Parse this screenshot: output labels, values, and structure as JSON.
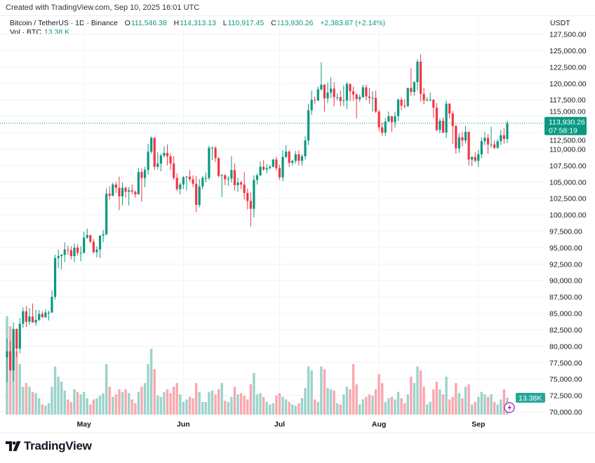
{
  "credit": "Created with TradingView.com, Sep 10, 2025 16:01 UTC",
  "legend": {
    "symbol": "Bitcoin / TetherUS · 1D · Binance",
    "open_label": "O",
    "open": "111,546.38",
    "high_label": "H",
    "high": "114,313.13",
    "low_label": "L",
    "low": "110,917.45",
    "close_label": "C",
    "close": "113,930.26",
    "change": "+2,383.87 (+2.14%)",
    "vol_label": "Vol · BTC",
    "vol": "13.38 K"
  },
  "currency": "USDT",
  "price_label": {
    "price": "113,930.26",
    "countdown": "07:58:19"
  },
  "volume_label": "13.38K",
  "logo_text": "TradingView",
  "colors": {
    "up": "#089981",
    "down": "#F23645",
    "up_volume": "#9BD3CA",
    "down_volume": "#F9A8AE",
    "alert_icon": "#9C27B0"
  },
  "chart_data": {
    "type": "candlestick",
    "title": "",
    "y_unit": "USDT",
    "ylim": [
      70000,
      127500
    ],
    "y_ticks": [
      "127,500.00",
      "125,000.00",
      "122,500.00",
      "120,000.00",
      "117,500.00",
      "115,000.00",
      "112,500.00",
      "110,000.00",
      "107,500.00",
      "105,000.00",
      "102,500.00",
      "100,000.00",
      "97,500.00",
      "95,000.00",
      "92,500.00",
      "90,000.00",
      "87,500.00",
      "85,000.00",
      "82,500.00",
      "80,000.00",
      "77,500.00",
      "75,000.00",
      "72,500.00",
      "70,000.00"
    ],
    "x_ticks": [
      {
        "label": "May",
        "date": "05-01"
      },
      {
        "label": "Jun",
        "date": "06-01"
      },
      {
        "label": "Jul",
        "date": "07-01"
      },
      {
        "label": "Aug",
        "date": "08-01"
      },
      {
        "label": "Sep",
        "date": "09-01"
      }
    ],
    "grid": true,
    "last_price": 113930.26,
    "columns": [
      "date",
      "open",
      "high",
      "low",
      "close",
      "volume_k_btc"
    ],
    "candles": [
      [
        "04-07",
        78300,
        81200,
        74500,
        79200,
        78
      ],
      [
        "04-08",
        79200,
        80800,
        76200,
        76300,
        70
      ],
      [
        "04-09",
        76300,
        83600,
        74600,
        82600,
        68
      ],
      [
        "04-10",
        82600,
        82700,
        78400,
        79600,
        50
      ],
      [
        "04-11",
        79600,
        84300,
        78900,
        83400,
        40
      ],
      [
        "04-12",
        83400,
        85900,
        82800,
        85300,
        22
      ],
      [
        "04-13",
        85300,
        86100,
        82900,
        83700,
        25
      ],
      [
        "04-14",
        83700,
        85800,
        83200,
        84500,
        22
      ],
      [
        "04-15",
        84500,
        86500,
        83600,
        83600,
        18
      ],
      [
        "04-16",
        83600,
        85500,
        83100,
        84000,
        17
      ],
      [
        "04-17",
        84000,
        85500,
        83800,
        84900,
        13
      ],
      [
        "04-18",
        84900,
        85300,
        84300,
        84400,
        8
      ],
      [
        "04-19",
        84400,
        85600,
        84300,
        85100,
        7
      ],
      [
        "04-20",
        85100,
        85400,
        83900,
        85100,
        9
      ],
      [
        "04-21",
        85100,
        88500,
        85100,
        87500,
        22
      ],
      [
        "04-22",
        87500,
        93900,
        87100,
        93400,
        38
      ],
      [
        "04-23",
        93400,
        94700,
        91900,
        93700,
        30
      ],
      [
        "04-24",
        93700,
        94000,
        91700,
        93900,
        26
      ],
      [
        "04-25",
        93900,
        95800,
        92800,
        94700,
        19
      ],
      [
        "04-26",
        94700,
        95300,
        93900,
        94600,
        12
      ],
      [
        "04-27",
        94600,
        95200,
        93200,
        93700,
        10
      ],
      [
        "04-28",
        93700,
        95600,
        92800,
        95000,
        20
      ],
      [
        "04-29",
        95000,
        95500,
        93800,
        94200,
        18
      ],
      [
        "04-30",
        94200,
        95200,
        92900,
        94200,
        16
      ],
      [
        "05-01",
        94200,
        97400,
        94100,
        96500,
        18
      ],
      [
        "05-02",
        96500,
        97900,
        96300,
        96900,
        13
      ],
      [
        "05-03",
        96900,
        96900,
        95700,
        95900,
        8
      ],
      [
        "05-04",
        95900,
        96300,
        94100,
        94300,
        12
      ],
      [
        "05-05",
        94300,
        95200,
        93500,
        94700,
        13
      ],
      [
        "05-06",
        94700,
        96900,
        93400,
        96800,
        15
      ],
      [
        "05-07",
        96800,
        97700,
        95800,
        97000,
        17
      ],
      [
        "05-08",
        97000,
        104000,
        96900,
        103200,
        40
      ],
      [
        "05-09",
        103200,
        104300,
        102300,
        102900,
        22
      ],
      [
        "05-10",
        102900,
        104900,
        102800,
        104600,
        14
      ],
      [
        "05-11",
        104600,
        105000,
        103300,
        104100,
        16
      ],
      [
        "05-12",
        104100,
        105800,
        100700,
        102800,
        20
      ],
      [
        "05-13",
        102800,
        104900,
        101400,
        104100,
        18
      ],
      [
        "05-14",
        104100,
        104300,
        102600,
        103500,
        20
      ],
      [
        "05-15",
        103500,
        104200,
        101400,
        103700,
        17
      ],
      [
        "05-16",
        103700,
        104600,
        103100,
        103500,
        12
      ],
      [
        "05-17",
        103500,
        103700,
        102600,
        103100,
        9
      ],
      [
        "05-18",
        103100,
        107100,
        103100,
        106500,
        18
      ],
      [
        "05-19",
        106500,
        107100,
        102000,
        105600,
        22
      ],
      [
        "05-20",
        105600,
        107300,
        104200,
        106800,
        25
      ],
      [
        "05-21",
        106800,
        110800,
        106100,
        109600,
        40
      ],
      [
        "05-22",
        109600,
        111900,
        109300,
        111700,
        52
      ],
      [
        "05-23",
        111700,
        111800,
        106800,
        107300,
        36
      ],
      [
        "05-24",
        107300,
        109500,
        106900,
        107800,
        15
      ],
      [
        "05-25",
        107800,
        109300,
        106600,
        109000,
        14
      ],
      [
        "05-26",
        109000,
        110400,
        108700,
        109400,
        18
      ],
      [
        "05-27",
        109400,
        110700,
        107500,
        108900,
        20
      ],
      [
        "05-28",
        108900,
        109300,
        106800,
        107800,
        17
      ],
      [
        "05-29",
        107800,
        108900,
        105300,
        105600,
        22
      ],
      [
        "05-30",
        105600,
        106300,
        103600,
        103900,
        25
      ],
      [
        "05-31",
        103900,
        104900,
        103100,
        104600,
        16
      ],
      [
        "06-01",
        104600,
        105900,
        103900,
        105700,
        10
      ],
      [
        "06-02",
        105700,
        105900,
        103700,
        105800,
        12
      ],
      [
        "06-03",
        105800,
        106800,
        105000,
        105400,
        14
      ],
      [
        "06-04",
        105400,
        106000,
        104200,
        104700,
        13
      ],
      [
        "06-05",
        104700,
        105900,
        100400,
        101500,
        25
      ],
      [
        "06-06",
        101500,
        105400,
        101100,
        104300,
        18
      ],
      [
        "06-07",
        104300,
        105900,
        103900,
        105600,
        10
      ],
      [
        "06-08",
        105600,
        106400,
        104900,
        105600,
        10
      ],
      [
        "06-09",
        105600,
        110500,
        105300,
        110200,
        18
      ],
      [
        "06-10",
        110200,
        110400,
        108300,
        110200,
        19
      ],
      [
        "06-11",
        110200,
        110400,
        108000,
        108600,
        16
      ],
      [
        "06-12",
        108600,
        108800,
        105700,
        105900,
        20
      ],
      [
        "06-13",
        105900,
        106200,
        102700,
        106000,
        25
      ],
      [
        "06-14",
        106000,
        106200,
        104500,
        105400,
        11
      ],
      [
        "06-15",
        105400,
        105900,
        104400,
        105500,
        10
      ],
      [
        "06-16",
        105500,
        108900,
        104900,
        106800,
        14
      ],
      [
        "06-17",
        106800,
        107800,
        103700,
        104500,
        22
      ],
      [
        "06-18",
        104500,
        105600,
        103500,
        104900,
        16
      ],
      [
        "06-19",
        104900,
        105200,
        103900,
        104600,
        17
      ],
      [
        "06-20",
        104600,
        106500,
        102300,
        103300,
        15
      ],
      [
        "06-21",
        103300,
        104000,
        100800,
        102100,
        12
      ],
      [
        "06-22",
        102100,
        103400,
        98200,
        100900,
        24
      ],
      [
        "06-23",
        100900,
        106000,
        99600,
        105300,
        33
      ],
      [
        "06-24",
        105300,
        106300,
        104600,
        106000,
        16
      ],
      [
        "06-25",
        106000,
        108100,
        105900,
        107300,
        17
      ],
      [
        "06-26",
        107300,
        108300,
        106700,
        106900,
        14
      ],
      [
        "06-27",
        106900,
        107700,
        106300,
        107100,
        10
      ],
      [
        "06-28",
        107100,
        107600,
        106900,
        107300,
        8
      ],
      [
        "06-29",
        107300,
        108500,
        107200,
        108400,
        9
      ],
      [
        "06-30",
        108400,
        108800,
        106700,
        107100,
        15
      ],
      [
        "07-01",
        107100,
        107600,
        105300,
        105700,
        17
      ],
      [
        "07-02",
        105700,
        109800,
        105100,
        108800,
        14
      ],
      [
        "07-03",
        108800,
        110600,
        108600,
        109600,
        12
      ],
      [
        "07-04",
        109600,
        109800,
        107300,
        107900,
        10
      ],
      [
        "07-05",
        107900,
        108400,
        107500,
        108200,
        8
      ],
      [
        "07-06",
        108200,
        109700,
        107800,
        109200,
        7
      ],
      [
        "07-07",
        109200,
        109800,
        107500,
        108200,
        9
      ],
      [
        "07-08",
        108200,
        109200,
        107500,
        108900,
        13
      ],
      [
        "07-09",
        108900,
        111900,
        108400,
        111300,
        21
      ],
      [
        "07-10",
        111300,
        116900,
        110600,
        115900,
        38
      ],
      [
        "07-11",
        115900,
        118900,
        115200,
        117500,
        35
      ],
      [
        "07-12",
        117500,
        118000,
        116900,
        117400,
        12
      ],
      [
        "07-13",
        117400,
        119500,
        117300,
        119100,
        10
      ],
      [
        "07-14",
        119100,
        123200,
        118900,
        119800,
        38
      ],
      [
        "07-15",
        119800,
        119900,
        115700,
        117700,
        36
      ],
      [
        "07-16",
        117700,
        120100,
        117000,
        118600,
        21
      ],
      [
        "07-17",
        118600,
        120900,
        117800,
        119200,
        20
      ],
      [
        "07-18",
        119200,
        120200,
        116500,
        117900,
        19
      ],
      [
        "07-19",
        117900,
        118500,
        117400,
        117900,
        9
      ],
      [
        "07-20",
        117900,
        118900,
        116500,
        117300,
        8
      ],
      [
        "07-21",
        117300,
        119700,
        116500,
        117400,
        16
      ],
      [
        "07-22",
        117400,
        120200,
        116100,
        119900,
        22
      ],
      [
        "07-23",
        119900,
        120000,
        117300,
        118800,
        20
      ],
      [
        "07-24",
        118800,
        119500,
        117300,
        118300,
        40
      ],
      [
        "07-25",
        118300,
        118500,
        114700,
        117600,
        24
      ],
      [
        "07-26",
        117600,
        118300,
        117200,
        117900,
        8
      ],
      [
        "07-27",
        117900,
        119800,
        117800,
        119400,
        12
      ],
      [
        "07-28",
        119400,
        119800,
        117400,
        118000,
        14
      ],
      [
        "07-29",
        118000,
        119300,
        116900,
        117800,
        16
      ],
      [
        "07-30",
        117800,
        118800,
        115700,
        117800,
        15
      ],
      [
        "07-31",
        117800,
        118900,
        115500,
        115700,
        20
      ],
      [
        "08-01",
        115700,
        116000,
        112700,
        113300,
        32
      ],
      [
        "08-02",
        113300,
        114000,
        112000,
        112500,
        25
      ],
      [
        "08-03",
        112500,
        114700,
        112000,
        114200,
        10
      ],
      [
        "08-04",
        114200,
        115700,
        114100,
        115000,
        13
      ],
      [
        "08-05",
        115000,
        115100,
        112600,
        114100,
        14
      ],
      [
        "08-06",
        114100,
        115700,
        113300,
        115000,
        12
      ],
      [
        "08-07",
        115000,
        117700,
        114300,
        117500,
        18
      ],
      [
        "08-08",
        117500,
        117900,
        115900,
        116600,
        13
      ],
      [
        "08-09",
        116600,
        117600,
        116200,
        116500,
        9
      ],
      [
        "08-10",
        116500,
        119300,
        116500,
        119300,
        16
      ],
      [
        "08-11",
        119300,
        122300,
        118100,
        118700,
        30
      ],
      [
        "08-12",
        118700,
        120300,
        118100,
        120200,
        25
      ],
      [
        "08-13",
        120200,
        123700,
        118900,
        123300,
        38
      ],
      [
        "08-14",
        123300,
        124400,
        117200,
        118400,
        35
      ],
      [
        "08-15",
        118400,
        119300,
        116800,
        117400,
        22
      ],
      [
        "08-16",
        117400,
        117900,
        117300,
        117500,
        8
      ],
      [
        "08-17",
        117500,
        118600,
        117300,
        117500,
        10
      ],
      [
        "08-18",
        117500,
        117600,
        114700,
        116300,
        20
      ],
      [
        "08-19",
        116300,
        117000,
        112700,
        112900,
        26
      ],
      [
        "08-20",
        112900,
        114600,
        112400,
        114300,
        20
      ],
      [
        "08-21",
        114300,
        114800,
        112400,
        112500,
        16
      ],
      [
        "08-22",
        112500,
        117400,
        111700,
        116900,
        30
      ],
      [
        "08-23",
        116900,
        117000,
        114700,
        115400,
        12
      ],
      [
        "08-24",
        115400,
        115800,
        110800,
        113500,
        14
      ],
      [
        "08-25",
        113500,
        113700,
        109300,
        110100,
        25
      ],
      [
        "08-26",
        110100,
        112400,
        109400,
        111800,
        17
      ],
      [
        "08-27",
        111800,
        112600,
        110400,
        111300,
        13
      ],
      [
        "08-28",
        111300,
        113500,
        110900,
        112600,
        22
      ],
      [
        "08-29",
        112600,
        112700,
        107500,
        108400,
        24
      ],
      [
        "08-30",
        108400,
        108900,
        107400,
        108800,
        8
      ],
      [
        "08-31",
        108800,
        109500,
        108000,
        108200,
        10
      ],
      [
        "09-01",
        108200,
        109900,
        107300,
        109200,
        14
      ],
      [
        "09-02",
        109200,
        111800,
        108600,
        111200,
        18
      ],
      [
        "09-03",
        111200,
        112600,
        110600,
        111700,
        16
      ],
      [
        "09-04",
        111700,
        112300,
        109300,
        110700,
        14
      ],
      [
        "09-05",
        110700,
        113400,
        110200,
        110700,
        16
      ],
      [
        "09-06",
        110700,
        111300,
        110000,
        110200,
        10
      ],
      [
        "09-07",
        110200,
        111500,
        110000,
        111200,
        8
      ],
      [
        "09-08",
        111200,
        112900,
        110600,
        112100,
        12
      ],
      [
        "09-09",
        112100,
        113200,
        110800,
        111546.38,
        20
      ],
      [
        "09-10",
        111546.38,
        114313.13,
        110917.45,
        113930.26,
        13.38
      ]
    ]
  }
}
